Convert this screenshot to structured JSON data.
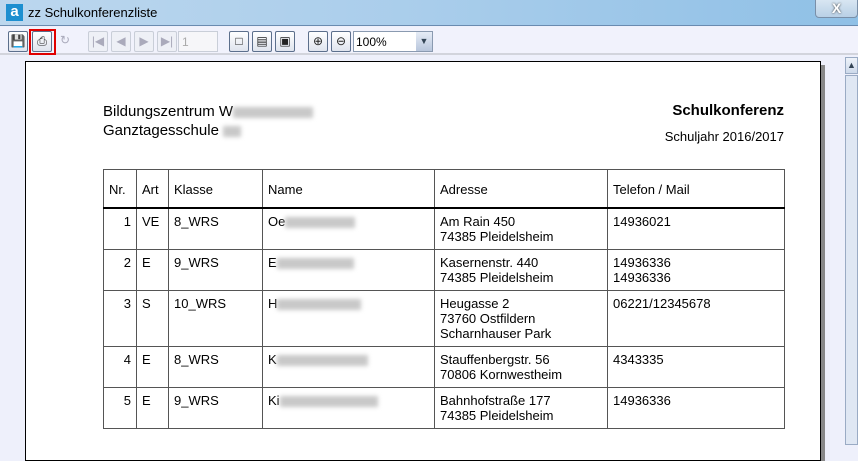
{
  "window": {
    "title": "zz Schulkonferenzliste",
    "app_icon": "a",
    "close": "X"
  },
  "toolbar": {
    "save": "save-icon",
    "print": "print-icon",
    "refresh": "refresh-icon",
    "first": "first-page",
    "prev": "prev-page",
    "next": "next-page",
    "last": "last-page",
    "page": "1",
    "zoom": "100%",
    "zoom_dropdown": "chevron-down",
    "highlight_color": "#e00000"
  },
  "report": {
    "school_line1": "Bildungszentrum W",
    "school_line2": "Ganztagesschule",
    "title": "Schulkonferenz",
    "year": "Schuljahr 2016/2017",
    "columns": [
      "Nr.",
      "Art",
      "Klasse",
      "Name",
      "Adresse",
      "Telefon / Mail"
    ],
    "rows": [
      {
        "nr": "1",
        "art": "VE",
        "klasse": "8_WRS",
        "name": "Oe",
        "addr1": "Am Rain 450",
        "addr2": "74385 Pleidelsheim",
        "addr3": "",
        "tel1": "14936021",
        "tel2": ""
      },
      {
        "nr": "2",
        "art": "E",
        "klasse": "9_WRS",
        "name": "E",
        "addr1": "Kasernenstr. 440",
        "addr2": "74385 Pleidelsheim",
        "addr3": "",
        "tel1": "14936336",
        "tel2": "14936336"
      },
      {
        "nr": "3",
        "art": "S",
        "klasse": "10_WRS",
        "name": "H",
        "addr1": "Heugasse 2",
        "addr2": "73760 Ostfildern",
        "addr3": "Scharnhauser Park",
        "tel1": "06221/12345678",
        "tel2": ""
      },
      {
        "nr": "4",
        "art": "E",
        "klasse": "8_WRS",
        "name": "K",
        "addr1": "Stauffenbergstr. 56",
        "addr2": "70806 Kornwestheim",
        "addr3": "",
        "tel1": "4343335",
        "tel2": ""
      },
      {
        "nr": "5",
        "art": "E",
        "klasse": "9_WRS",
        "name": "Ki",
        "addr1": "Bahnhofstraße 177",
        "addr2": "74385 Pleidelsheim",
        "addr3": "",
        "tel1": "14936336",
        "tel2": ""
      }
    ]
  }
}
